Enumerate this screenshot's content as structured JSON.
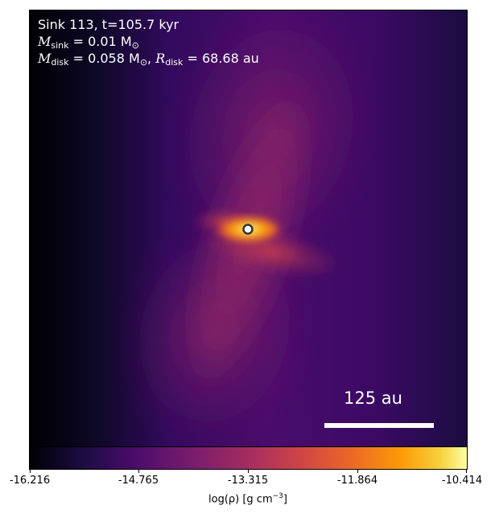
{
  "annotation": {
    "line1": "Sink 113, t=105.7 kyr",
    "m_sink_symbol": "M",
    "m_sink_sub": "sink",
    "m_sink_value": " = 0.01 M",
    "m_disk_symbol": "M",
    "m_disk_sub": "disk",
    "m_disk_value": " = 0.058 M",
    "r_disk_symbol": "R",
    "r_disk_sub": "disk",
    "r_disk_value": " = 68.68 au",
    "sun_symbol": "⊙"
  },
  "scale_bar": {
    "label": "125 au"
  },
  "colorbar": {
    "title": "log(ρ) [g cm",
    "title_exp": "−3",
    "title_end": "]",
    "ticks": [
      "-16.216",
      "-14.765",
      "-13.315",
      "-11.864",
      "-10.414"
    ],
    "colormap": "inferno"
  }
}
